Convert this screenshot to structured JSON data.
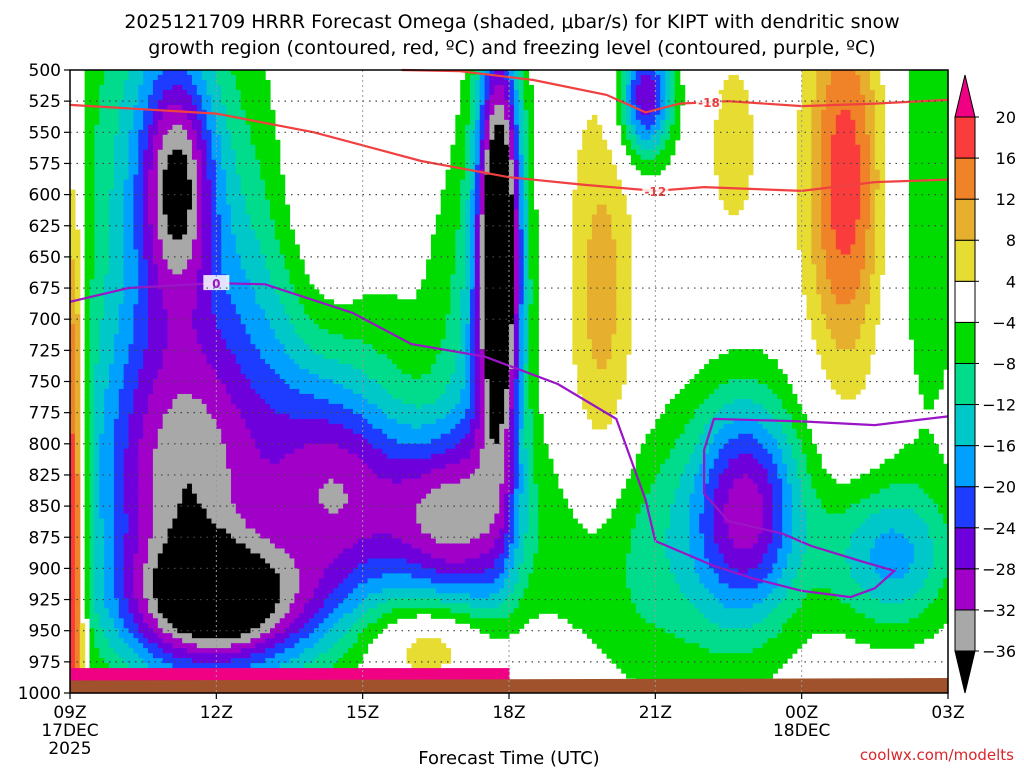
{
  "chart_data": {
    "type": "heatmap",
    "title_line1": "2025121709 HRRR Forecast Omega (shaded, μbar/s) for KIPT with dendritic snow",
    "title_line2": "growth region (contoured, red, ºC) and freezing level (contoured, purple, ºC)",
    "xlabel": "Forecast Time (UTC)",
    "credit": "coolwx.com/modelts",
    "x_hours": [
      0,
      3,
      6,
      9,
      12,
      15,
      18
    ],
    "x_ticks": [
      {
        "h": 0,
        "label": "09Z",
        "sub1": "17DEC",
        "sub2": "2025"
      },
      {
        "h": 3,
        "label": "12Z",
        "sub1": "",
        "sub2": ""
      },
      {
        "h": 6,
        "label": "15Z",
        "sub1": "",
        "sub2": ""
      },
      {
        "h": 9,
        "label": "18Z",
        "sub1": "",
        "sub2": ""
      },
      {
        "h": 12,
        "label": "21Z",
        "sub1": "",
        "sub2": ""
      },
      {
        "h": 15,
        "label": "00Z",
        "sub1": "18DEC",
        "sub2": ""
      },
      {
        "h": 18,
        "label": "03Z",
        "sub1": "",
        "sub2": ""
      }
    ],
    "x_range": [
      0,
      18
    ],
    "y_levels": [
      500,
      525,
      550,
      575,
      600,
      625,
      650,
      675,
      700,
      725,
      750,
      775,
      800,
      825,
      850,
      875,
      900,
      925,
      950,
      975,
      1000
    ],
    "y_range": [
      500,
      1000
    ],
    "grid": true,
    "colorbar": {
      "bounds": [
        -36,
        -32,
        -28,
        -24,
        -20,
        -16,
        -12,
        -8,
        -4,
        4,
        8,
        12,
        16,
        20
      ],
      "labels": [
        "20",
        "16",
        "12",
        "8",
        "4",
        "−4",
        "−8",
        "−12",
        "−16",
        "−20",
        "−24",
        "−28",
        "−32",
        "−36"
      ],
      "label_values": [
        20,
        16,
        12,
        8,
        4,
        -4,
        -8,
        -12,
        -16,
        -20,
        -24,
        -28,
        -32,
        -36
      ],
      "colors": [
        "#000000",
        "#a8a8a8",
        "#a000c8",
        "#6e00dc",
        "#1e3cff",
        "#00a0ff",
        "#00c8c8",
        "#00dc8c",
        "#00dc00",
        "#ffffff",
        "#e6dc32",
        "#e6af2d",
        "#f08228",
        "#fa3c3c",
        "#f00082"
      ]
    },
    "omega_features": [
      {
        "h": 3.2,
        "p": 930,
        "v": -29,
        "sh": 1.9,
        "sp": 50
      },
      {
        "h": 2.2,
        "p": 840,
        "v": -24,
        "sh": 1.8,
        "sp": 130
      },
      {
        "h": 5.5,
        "p": 840,
        "v": -22,
        "sh": 1.4,
        "sp": 90
      },
      {
        "h": 7.6,
        "p": 860,
        "v": -26,
        "sh": 1.3,
        "sp": 70
      },
      {
        "h": 2.2,
        "p": 590,
        "v": -22,
        "sh": 0.7,
        "sp": 90
      },
      {
        "h": 3.6,
        "p": 760,
        "v": -14,
        "sh": 2.8,
        "sp": 210
      },
      {
        "h": 1.8,
        "p": 560,
        "v": -12,
        "sh": 1.6,
        "sp": 190
      },
      {
        "h": 8.8,
        "p": 640,
        "v": -46,
        "sh": 0.45,
        "sp": 170
      },
      {
        "h": 8.4,
        "p": 780,
        "v": -12,
        "sh": 0.9,
        "sp": 220
      },
      {
        "h": 5.2,
        "p": 610,
        "v": 9,
        "sh": 0.9,
        "sp": 120
      },
      {
        "h": 7.6,
        "p": 960,
        "v": 12,
        "sh": 1.4,
        "sp": 35
      },
      {
        "h": 10.9,
        "p": 690,
        "v": 10,
        "sh": 0.7,
        "sp": 180
      },
      {
        "h": 15.9,
        "p": 590,
        "v": 19,
        "sh": 0.8,
        "sp": 150
      },
      {
        "h": 13.6,
        "p": 560,
        "v": 6,
        "sh": 0.6,
        "sp": 90
      },
      {
        "h": 11.8,
        "p": 520,
        "v": -28,
        "sh": 0.55,
        "sp": 50
      },
      {
        "h": 13.9,
        "p": 850,
        "v": -26,
        "sh": 1.1,
        "sp": 90
      },
      {
        "h": 16.8,
        "p": 890,
        "v": -17,
        "sh": 1.3,
        "sp": 60
      },
      {
        "h": 12.0,
        "p": 890,
        "v": -10,
        "sh": 2.4,
        "sp": 110
      },
      {
        "h": 17.6,
        "p": 600,
        "v": -7,
        "sh": 0.9,
        "sp": 220
      },
      {
        "h": 0.05,
        "p": 850,
        "v": 26,
        "sh": 0.25,
        "sp": 250
      }
    ],
    "omega_surface_band": {
      "p_top": 982,
      "v": 22,
      "h_start": 0,
      "h_end": 9
    },
    "surface_ground_color": "#a0522d",
    "dendritic_contours": [
      {
        "label": "-18",
        "label_h": 13.1,
        "points": [
          [
            6.8,
            500
          ],
          [
            8.0,
            501
          ],
          [
            9.5,
            508
          ],
          [
            11.0,
            520
          ],
          [
            11.8,
            534
          ],
          [
            12.5,
            527
          ],
          [
            13.5,
            525
          ],
          [
            15.0,
            529
          ],
          [
            16.5,
            527
          ],
          [
            18.0,
            524
          ]
        ]
      },
      {
        "label": "-12",
        "label_h": 12.0,
        "points": [
          [
            0,
            528
          ],
          [
            3.0,
            535
          ],
          [
            5.0,
            550
          ],
          [
            7.2,
            573
          ],
          [
            9.0,
            586
          ],
          [
            10.5,
            592
          ],
          [
            12.0,
            597
          ],
          [
            13.0,
            594
          ],
          [
            15.0,
            597
          ],
          [
            16.5,
            590
          ],
          [
            18.0,
            588
          ]
        ]
      }
    ],
    "freezing_contours": [
      {
        "label": "0",
        "label_h": 3.0,
        "points": [
          [
            0,
            686
          ],
          [
            1.2,
            675
          ],
          [
            3.0,
            671
          ],
          [
            4.0,
            672
          ],
          [
            5.8,
            695
          ],
          [
            7.0,
            720
          ],
          [
            8.5,
            730
          ],
          [
            10.0,
            752
          ],
          [
            11.2,
            780
          ],
          [
            11.8,
            845
          ],
          [
            12.0,
            878
          ],
          [
            13.2,
            898
          ],
          [
            14.0,
            908
          ],
          [
            15.0,
            918
          ],
          [
            16.0,
            923
          ],
          [
            16.5,
            916
          ],
          [
            16.9,
            902
          ],
          [
            16.2,
            894
          ],
          [
            15.2,
            882
          ],
          [
            14.6,
            872
          ],
          [
            13.5,
            862
          ],
          [
            13.0,
            840
          ],
          [
            13.0,
            805
          ],
          [
            13.2,
            780
          ],
          [
            15.0,
            782
          ],
          [
            16.5,
            785
          ],
          [
            18.0,
            778
          ]
        ]
      }
    ]
  }
}
